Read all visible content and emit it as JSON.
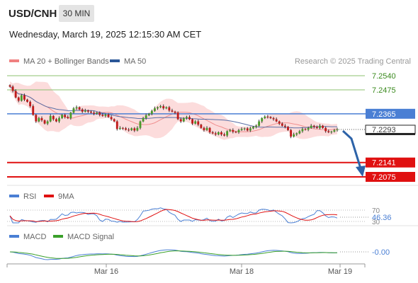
{
  "header": {
    "symbol": "USD/CNH",
    "timeframe": "30 MIN",
    "datetime": "Wednesday, March 19, 2025 12:15:30 AM CET"
  },
  "legend": {
    "items": [
      {
        "label": "MA 20 + Bollinger Bands",
        "color": "#f08080"
      },
      {
        "label": "MA 50",
        "color": "#2b5797"
      }
    ],
    "credit": "Research © 2025 Trading Central"
  },
  "chart_data": [
    {
      "type": "candlestick",
      "title": "USD/CNH",
      "x_ticks": [
        "Mar 16",
        "Mar 18",
        "Mar 19"
      ],
      "levels": [
        {
          "value": 7.254,
          "label": "7.2540",
          "color": "#8dc26f",
          "style": "line"
        },
        {
          "value": 7.2475,
          "label": "7.2475",
          "color": "#8dc26f",
          "style": "line"
        },
        {
          "value": 7.2365,
          "label": "7.2365",
          "color": "#4a7fd4",
          "style": "box"
        },
        {
          "value": 7.2293,
          "label": "7.2293",
          "color": "#222222",
          "style": "current"
        },
        {
          "value": 7.2141,
          "label": "7.2141",
          "color": "#e01010",
          "style": "box"
        },
        {
          "value": 7.2075,
          "label": "7.2075",
          "color": "#e01010",
          "style": "box"
        }
      ],
      "closes": [
        7.249,
        7.247,
        7.244,
        7.2425,
        7.245,
        7.243,
        7.242,
        7.24,
        7.236,
        7.233,
        7.2345,
        7.2335,
        7.232,
        7.233,
        7.2355,
        7.234,
        7.233,
        7.2345,
        7.236,
        7.235,
        7.2345,
        7.237,
        7.239,
        7.2395,
        7.2385,
        7.2375,
        7.238,
        7.2375,
        7.237,
        7.2365,
        7.237,
        7.236,
        7.2355,
        7.2362,
        7.235,
        7.234,
        7.233,
        7.2295,
        7.23,
        7.2298,
        7.2292,
        7.229,
        7.2298,
        7.2288,
        7.23,
        7.233,
        7.2345,
        7.2358,
        7.2365,
        7.2378,
        7.239,
        7.2395,
        7.24,
        7.239,
        7.2395,
        7.238,
        7.2375,
        7.237,
        7.234,
        7.233,
        7.2345,
        7.235,
        7.234,
        7.232,
        7.233,
        7.2315,
        7.23,
        7.229,
        7.23,
        7.228,
        7.2275,
        7.227,
        7.228,
        7.227,
        7.2265,
        7.2285,
        7.229,
        7.2282,
        7.228,
        7.229,
        7.2295,
        7.2298,
        7.2288,
        7.2298,
        7.2305,
        7.231,
        7.233,
        7.2345,
        7.2352,
        7.235,
        7.2345,
        7.234,
        7.233,
        7.232,
        7.231,
        7.2305,
        7.229,
        7.226,
        7.227,
        7.2275,
        7.2285,
        7.2295,
        7.2292,
        7.23,
        7.231,
        7.2305,
        7.23,
        7.231,
        7.23,
        7.2285,
        7.228,
        7.2283,
        7.229,
        7.2293
      ]
    },
    {
      "type": "line",
      "title": "RSI",
      "series": [
        {
          "name": "RSI",
          "color": "#4a7fd4"
        },
        {
          "name": "9MA",
          "color": "#e01010"
        }
      ],
      "levels": [
        "70",
        "30"
      ],
      "last_value": "46.36"
    },
    {
      "type": "line",
      "title": "MACD",
      "series": [
        {
          "name": "MACD",
          "color": "#4a7fd4"
        },
        {
          "name": "MACD Signal",
          "color": "#3aa02a"
        }
      ],
      "last_value": "-0.00"
    }
  ]
}
